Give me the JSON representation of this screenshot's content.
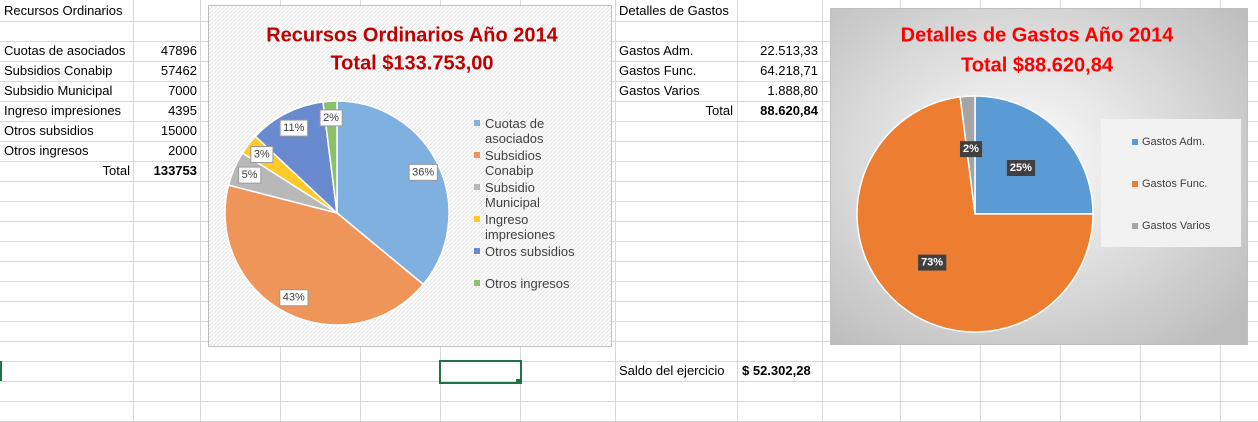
{
  "income_table": {
    "header": "Recursos Ordinarios",
    "rows": [
      [
        "Cuotas de asociados",
        47896
      ],
      [
        "Subsidios Conabip",
        57462
      ],
      [
        "Subsidio Municipal",
        7000
      ],
      [
        "Ingreso impresiones",
        4395
      ],
      [
        "Otros subsidios",
        15000
      ],
      [
        "Otros ingresos",
        2000
      ]
    ],
    "total_label": "Total",
    "total": 133753
  },
  "expense_table": {
    "header": "Detalles de Gastos",
    "rows": [
      [
        "Gastos Adm.",
        "22.513,33"
      ],
      [
        "Gastos Func.",
        "64.218,71"
      ],
      [
        "Gastos Varios",
        "1.888,80"
      ]
    ],
    "total_label": "Total",
    "total": "88.620,84"
  },
  "balance": {
    "label": "Saldo  del ejercicio",
    "value": "$ 52.302,28"
  },
  "chart_data": [
    {
      "type": "pie",
      "title": "Recursos Ordinarios Año 2014",
      "subtitle": "Total $133.753,00",
      "categories": [
        "Cuotas de asociados",
        "Subsidios Conabip",
        "Subsidio Municipal",
        "Ingreso impresiones",
        "Otros subsidios",
        "Otros ingresos"
      ],
      "values": [
        36,
        43,
        5,
        3,
        11,
        2
      ],
      "value_labels": [
        "36%",
        "43%",
        "5%",
        "3%",
        "11%",
        "2%"
      ],
      "colors": [
        "#7fb0e0",
        "#f0955a",
        "#b8b8b8",
        "#ffc929",
        "#6a8ad0",
        "#8dc06a"
      ],
      "legend": "right"
    },
    {
      "type": "pie",
      "title": "Detalles de Gastos Año 2014",
      "subtitle": "Total $88.620,84",
      "categories": [
        "Gastos Adm.",
        "Gastos Func.",
        "Gastos Varios"
      ],
      "values": [
        25,
        73,
        2
      ],
      "value_labels": [
        "25%",
        "73%",
        "2%"
      ],
      "colors": [
        "#5b9bd5",
        "#ed7d31",
        "#a5a5a5"
      ],
      "legend": "right"
    }
  ]
}
